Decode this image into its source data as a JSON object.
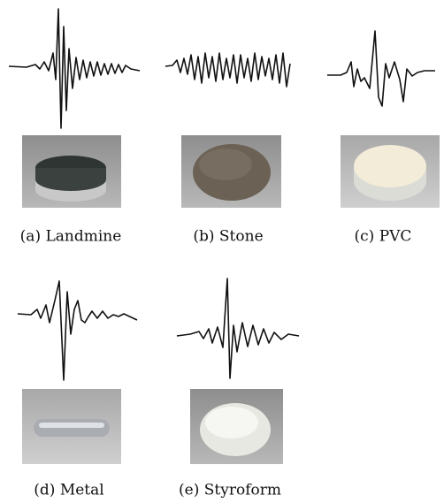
{
  "figures": [
    {
      "caption": "(a) Landmine"
    },
    {
      "caption": "(b) Stone"
    },
    {
      "caption": "(c) PVC"
    },
    {
      "caption": "(d) Metal"
    },
    {
      "caption": "(e) Styroform"
    }
  ]
}
